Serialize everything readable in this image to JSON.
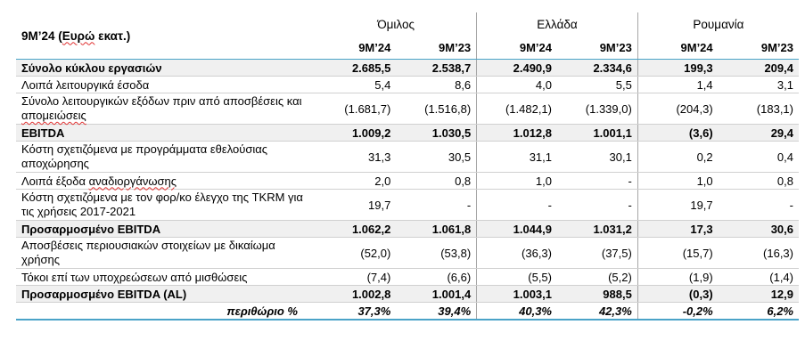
{
  "table": {
    "corner_label_prefix": "9M’24 (",
    "corner_label_mark": "Ευρώ",
    "corner_label_suffix": " εκατ.)",
    "groups": [
      "Όμιλος",
      "Ελλάδα",
      "Ρουμανία"
    ],
    "columns": [
      "9M’24",
      "9M’23",
      "9M’24",
      "9M’23",
      "9M’24",
      "9M’23"
    ],
    "rows": [
      {
        "label": "Σύνολο κύκλου εργασιών",
        "values": [
          "2.685,5",
          "2.538,7",
          "2.490,9",
          "2.334,6",
          "199,3",
          "209,4"
        ]
      },
      {
        "label": "Λοιπά λειτουργικά έσοδα",
        "values": [
          "5,4",
          "8,6",
          "4,0",
          "5,5",
          "1,4",
          "3,1"
        ]
      },
      {
        "label": "Σύνολο λειτουργικών εξόδων πριν από αποσβέσεις και απομειώσεις",
        "values": [
          "(1.681,7)",
          "(1.516,8)",
          "(1.482,1)",
          "(1.339,0)",
          "(204,3)",
          "(183,1)"
        ]
      },
      {
        "label": "EBITDA",
        "values": [
          "1.009,2",
          "1.030,5",
          "1.012,8",
          "1.001,1",
          "(3,6)",
          "29,4"
        ]
      },
      {
        "label": "Κόστη σχετιζόμενα με προγράμματα εθελούσιας αποχώρησης",
        "values": [
          "31,3",
          "30,5",
          "31,1",
          "30,1",
          "0,2",
          "0,4"
        ]
      },
      {
        "label": "Λοιπά έξοδα αναδιοργάνωσης",
        "values": [
          "2,0",
          "0,8",
          "1,0",
          "-",
          "1,0",
          "0,8"
        ]
      },
      {
        "label": "Κόστη σχετιζόμενα με τον φορ/κο έλεγχο της TKRM για τις χρήσεις 2017-2021",
        "values": [
          "19,7",
          "-",
          "-",
          "-",
          "19,7",
          "-"
        ]
      },
      {
        "label": "Προσαρμοσμένο EBITDA",
        "values": [
          "1.062,2",
          "1.061,8",
          "1.044,9",
          "1.031,2",
          "17,3",
          "30,6"
        ]
      },
      {
        "label": "Αποσβέσεις περιουσιακών στοιχείων με δικαίωμα χρήσης",
        "values": [
          "(52,0)",
          "(53,8)",
          "(36,3)",
          "(37,5)",
          "(15,7)",
          "(16,3)"
        ]
      },
      {
        "label": "Τόκοι επί των υποχρεώσεων από μισθώσεις",
        "values": [
          "(7,4)",
          "(6,6)",
          "(5,5)",
          "(5,2)",
          "(1,9)",
          "(1,4)"
        ]
      },
      {
        "label": "Προσαρμοσμένο EBITDA (AL)",
        "values": [
          "1.002,8",
          "1.001,4",
          "1.003,1",
          "988,5",
          "(0,3)",
          "12,9"
        ]
      },
      {
        "label": "περιθώριο %",
        "values": [
          "37,3%",
          "39,4%",
          "40,3%",
          "42,3%",
          "-0,2%",
          "6,2%"
        ]
      }
    ]
  }
}
